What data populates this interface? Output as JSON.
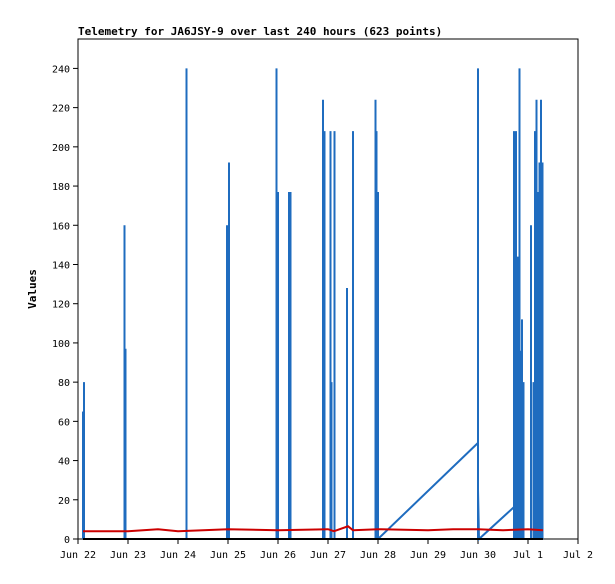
{
  "chart_data": {
    "type": "line",
    "title": "Telemetry for JA6JSY-9 over last 240 hours (623 points)",
    "ylabel": "Values",
    "xlabel": "",
    "ylim": [
      0,
      255
    ],
    "yticks": [
      0,
      20,
      40,
      60,
      80,
      100,
      120,
      140,
      160,
      180,
      200,
      220,
      240
    ],
    "xlim": [
      0,
      10
    ],
    "x_units": "days from Jun 22",
    "xticks": [
      {
        "x": 0,
        "label": "Jun 22"
      },
      {
        "x": 1,
        "label": "Jun 23"
      },
      {
        "x": 2,
        "label": "Jun 24"
      },
      {
        "x": 3,
        "label": "Jun 25"
      },
      {
        "x": 4,
        "label": "Jun 26"
      },
      {
        "x": 5,
        "label": "Jun 27"
      },
      {
        "x": 6,
        "label": "Jun 28"
      },
      {
        "x": 7,
        "label": "Jun 29"
      },
      {
        "x": 8,
        "label": "Jun 30"
      },
      {
        "x": 9,
        "label": "Jul 1"
      },
      {
        "x": 10,
        "label": "Jul 2"
      }
    ],
    "grid": false,
    "series": [
      {
        "color": "#1f6cbf",
        "kind": "spikes",
        "spikes": [
          {
            "x": 0.1,
            "y": 65
          },
          {
            "x": 0.12,
            "y": 80
          },
          {
            "x": 0.93,
            "y": 160
          },
          {
            "x": 0.95,
            "y": 97
          },
          {
            "x": 2.17,
            "y": 240
          },
          {
            "x": 2.98,
            "y": 160
          },
          {
            "x": 3.02,
            "y": 192
          },
          {
            "x": 3.97,
            "y": 240
          },
          {
            "x": 4.0,
            "y": 177
          },
          {
            "x": 4.22,
            "y": 177
          },
          {
            "x": 4.25,
            "y": 177
          },
          {
            "x": 4.9,
            "y": 224
          },
          {
            "x": 4.93,
            "y": 208
          },
          {
            "x": 5.05,
            "y": 208
          },
          {
            "x": 5.07,
            "y": 80
          },
          {
            "x": 5.13,
            "y": 208
          },
          {
            "x": 5.38,
            "y": 128
          },
          {
            "x": 5.5,
            "y": 208
          },
          {
            "x": 5.95,
            "y": 224
          },
          {
            "x": 5.97,
            "y": 208
          },
          {
            "x": 6.0,
            "y": 177
          },
          {
            "x": 8.0,
            "y": 240
          },
          {
            "x": 8.72,
            "y": 208
          },
          {
            "x": 8.76,
            "y": 208
          },
          {
            "x": 8.8,
            "y": 144
          },
          {
            "x": 8.83,
            "y": 240
          },
          {
            "x": 8.86,
            "y": 96
          },
          {
            "x": 8.88,
            "y": 112
          },
          {
            "x": 8.91,
            "y": 80
          },
          {
            "x": 9.06,
            "y": 160
          },
          {
            "x": 9.11,
            "y": 80
          },
          {
            "x": 9.14,
            "y": 208
          },
          {
            "x": 9.17,
            "y": 224
          },
          {
            "x": 9.2,
            "y": 177
          },
          {
            "x": 9.23,
            "y": 192
          },
          {
            "x": 9.26,
            "y": 224
          },
          {
            "x": 9.29,
            "y": 192
          }
        ],
        "lines": [
          [
            [
              6.0,
              0
            ],
            [
              8.0,
              49
            ],
            [
              8.0,
              25
            ],
            [
              8.02,
              0
            ],
            [
              8.75,
              17
            ],
            [
              8.77,
              0
            ]
          ]
        ]
      },
      {
        "color": "#cc0000",
        "kind": "line",
        "points": [
          [
            0.1,
            4
          ],
          [
            1.0,
            4
          ],
          [
            1.6,
            5
          ],
          [
            2.0,
            4
          ],
          [
            3.0,
            5
          ],
          [
            4.0,
            4.5
          ],
          [
            5.0,
            5
          ],
          [
            5.12,
            4
          ],
          [
            5.4,
            6.5
          ],
          [
            5.5,
            4.5
          ],
          [
            6.0,
            5
          ],
          [
            7.0,
            4.5
          ],
          [
            7.5,
            5
          ],
          [
            8.0,
            5
          ],
          [
            8.5,
            4.5
          ],
          [
            9.0,
            5
          ],
          [
            9.3,
            4.5
          ]
        ]
      },
      {
        "color": "#000000",
        "kind": "line",
        "points": [
          [
            0.1,
            0
          ],
          [
            9.3,
            0
          ]
        ]
      }
    ]
  }
}
